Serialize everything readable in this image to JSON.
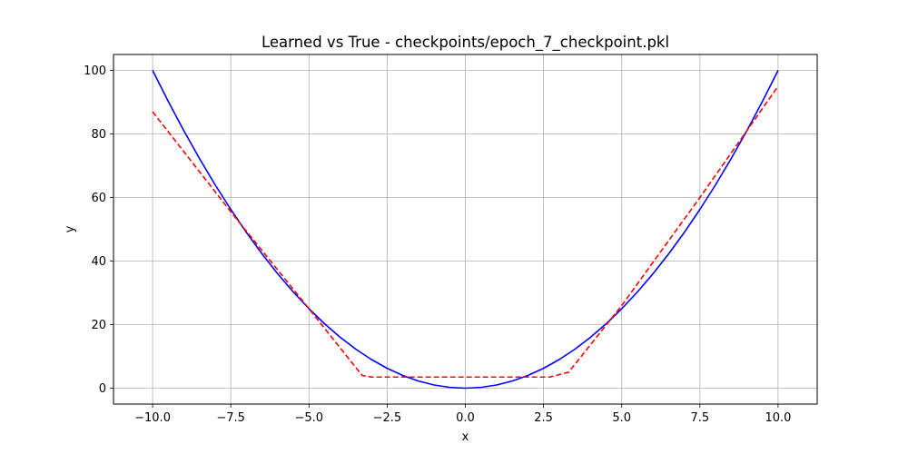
{
  "chart_data": {
    "type": "line",
    "title": "Learned vs True - checkpoints/epoch_7_checkpoint.pkl",
    "xlabel": "x",
    "ylabel": "y",
    "xlim": [
      -11.25,
      11.25
    ],
    "ylim": [
      -5,
      105
    ],
    "grid": true,
    "x_ticks": [
      -10.0,
      -7.5,
      -5.0,
      -2.5,
      0.0,
      2.5,
      5.0,
      7.5,
      10.0
    ],
    "x_tick_labels": [
      "−10.0",
      "−7.5",
      "−5.0",
      "−2.5",
      "0.0",
      "2.5",
      "5.0",
      "7.5",
      "10.0"
    ],
    "y_ticks": [
      0,
      20,
      40,
      60,
      80,
      100
    ],
    "y_tick_labels": [
      "0",
      "20",
      "40",
      "60",
      "80",
      "100"
    ],
    "series": [
      {
        "color": "#0000ff",
        "style": "solid",
        "x": [
          -10,
          -9.5,
          -9,
          -8.5,
          -8,
          -7.5,
          -7,
          -6.5,
          -6,
          -5.5,
          -5,
          -4.5,
          -4,
          -3.5,
          -3,
          -2.5,
          -2,
          -1.5,
          -1,
          -0.5,
          0,
          0.5,
          1,
          1.5,
          2,
          2.5,
          3,
          3.5,
          4,
          4.5,
          5,
          5.5,
          6,
          6.5,
          7,
          7.5,
          8,
          8.5,
          9,
          9.5,
          10
        ],
        "y": [
          100,
          90.25,
          81,
          72.25,
          64,
          56.25,
          49,
          42.25,
          36,
          30.25,
          25,
          20.25,
          16,
          12.25,
          9,
          6.25,
          4,
          2.25,
          1,
          0.25,
          0,
          0.25,
          1,
          2.25,
          4,
          6.25,
          9,
          12.25,
          16,
          20.25,
          25,
          30.25,
          36,
          42.25,
          49,
          56.25,
          64,
          72.25,
          81,
          90.25,
          100
        ]
      },
      {
        "color": "#ff0000",
        "style": "dashed",
        "x": [
          -10,
          -7.5,
          -5,
          -3.3,
          -3.0,
          0,
          2.7,
          3.3,
          5,
          7.5,
          10
        ],
        "y": [
          87,
          55.5,
          25,
          4,
          3.5,
          3.5,
          3.5,
          5,
          26,
          60,
          95
        ]
      }
    ]
  }
}
